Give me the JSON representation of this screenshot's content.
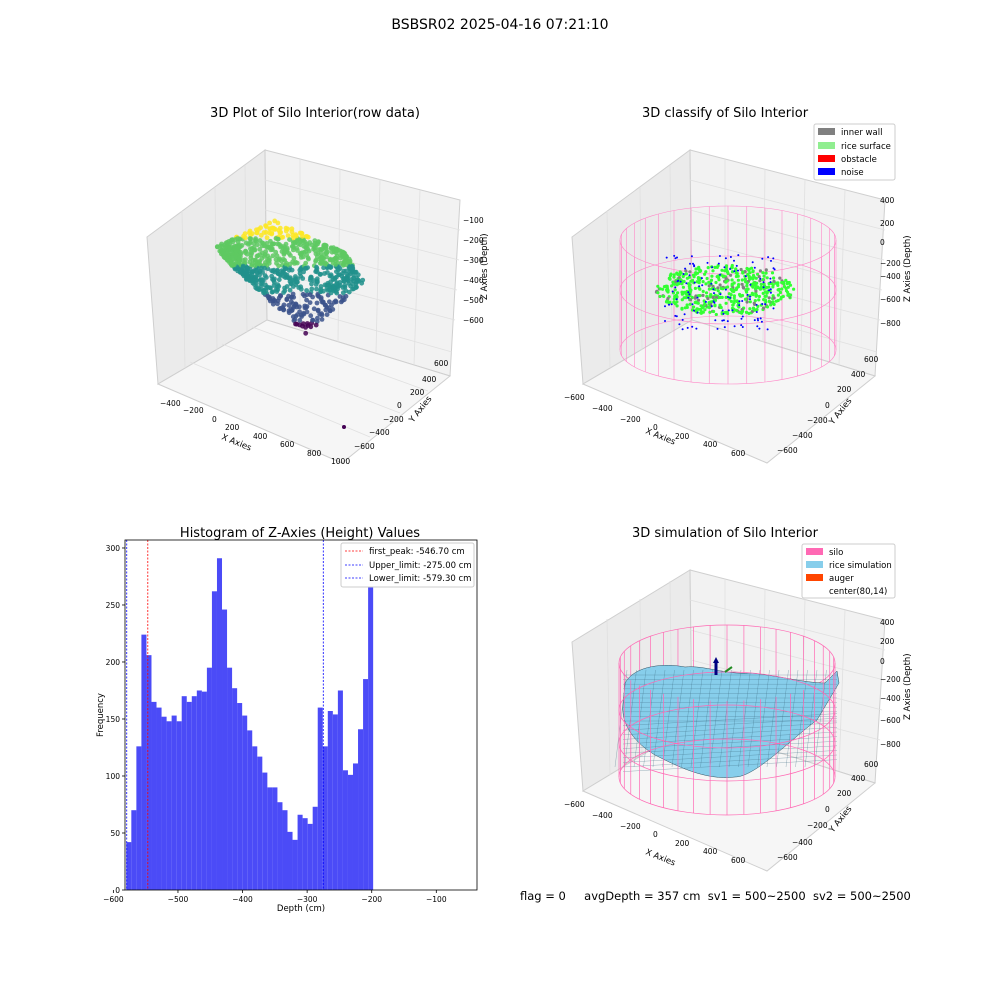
{
  "figure": {
    "suptitle": "BSBSR02 2025-04-16 07:21:10",
    "status": {
      "flag": "flag = 0",
      "avg_depth": "avgDepth = 357 cm",
      "sv1": "sv1 = 500~2500",
      "sv2": "sv2 = 500~2500"
    }
  },
  "chart_data": [
    {
      "type": "scatter3d",
      "title": "3D Plot of Silo Interior(row data)",
      "xlabel": "X Axies",
      "ylabel": "Y Axies",
      "zlabel": "Z Axies (Depth)",
      "x_ticks": [
        -400,
        -200,
        0,
        200,
        400,
        600,
        800,
        1000
      ],
      "y_ticks": [
        -600,
        -400,
        -200,
        0,
        200,
        400,
        600
      ],
      "z_ticks": [
        -600,
        -500,
        -400,
        -300,
        -200,
        -100
      ],
      "colormap": "viridis",
      "colors": [
        "#440154",
        "#3b528b",
        "#21918c",
        "#5ec962",
        "#fde725"
      ]
    },
    {
      "type": "scatter3d",
      "title": "3D classify of Silo Interior",
      "x_ticks": [
        -600,
        -400,
        -200,
        0,
        200,
        400,
        600
      ],
      "y_ticks": [
        -600,
        -400,
        -200,
        0,
        200,
        400,
        600
      ],
      "z_ticks": [
        -800,
        -600,
        -400,
        -200,
        0,
        200,
        400
      ],
      "xlabel": "X Axies",
      "ylabel": "Y Axies",
      "zlabel": "Z Axies (Depth)",
      "legend_position": "top-right",
      "legend": [
        {
          "name": "inner wall",
          "color": "#808080"
        },
        {
          "name": "rice surface",
          "color": "#90ee90"
        },
        {
          "name": "obstacle",
          "color": "#ff0000"
        },
        {
          "name": "noise",
          "color": "#0000ff"
        }
      ],
      "wireframe_color": "#ff88c8"
    },
    {
      "type": "bar",
      "title": "Histogram of Z-Axies (Height) Values",
      "xlabel": "Depth (cm)",
      "ylabel": "Frequency",
      "xlim": [
        -582,
        -37
      ],
      "ylim": [
        0,
        307
      ],
      "x_ticks": [
        -600,
        -500,
        -400,
        -300,
        -200,
        -100
      ],
      "y_ticks": [
        0,
        50,
        100,
        150,
        200,
        250,
        300
      ],
      "bar_color": "#4b4bf7",
      "bin_start": -580,
      "bin_width": 7.8,
      "values": [
        42,
        70,
        126,
        224,
        206,
        165,
        160,
        152,
        148,
        153,
        148,
        170,
        165,
        170,
        175,
        174,
        195,
        262,
        291,
        246,
        195,
        177,
        164,
        153,
        140,
        126,
        117,
        103,
        90,
        90,
        77,
        70,
        51,
        44,
        66,
        63,
        58,
        73,
        160,
        126,
        157,
        154,
        175,
        105,
        101,
        111,
        141,
        185,
        277
      ],
      "legend_position": "top-right",
      "vlines": [
        {
          "name": "first_peak: -546.70 cm",
          "x": -546.7,
          "color": "#ff0000"
        },
        {
          "name": "Upper_limit: -275.00 cm",
          "x": -275.0,
          "color": "#0000ff"
        },
        {
          "name": "Lower_limit: -579.30 cm",
          "x": -579.3,
          "color": "#0000ff"
        }
      ]
    },
    {
      "type": "surface3d",
      "title": "3D simulation of Silo Interior",
      "x_ticks": [
        -600,
        -400,
        -200,
        0,
        200,
        400,
        600
      ],
      "y_ticks": [
        -600,
        -400,
        -200,
        0,
        200,
        400,
        600
      ],
      "z_ticks": [
        -800,
        -600,
        -400,
        -200,
        0,
        200,
        400
      ],
      "xlabel": "X Axies",
      "ylabel": "Y Axies",
      "zlabel": "Z Axies (Depth)",
      "legend_position": "top-right",
      "legend": [
        {
          "name": "silo",
          "color": "#ff69b4"
        },
        {
          "name": "rice simulation",
          "color": "#87ceeb"
        },
        {
          "name": "auger",
          "color": "#ff4500"
        },
        {
          "name": "center(80,14)",
          "color": "#ffffff"
        }
      ]
    }
  ]
}
